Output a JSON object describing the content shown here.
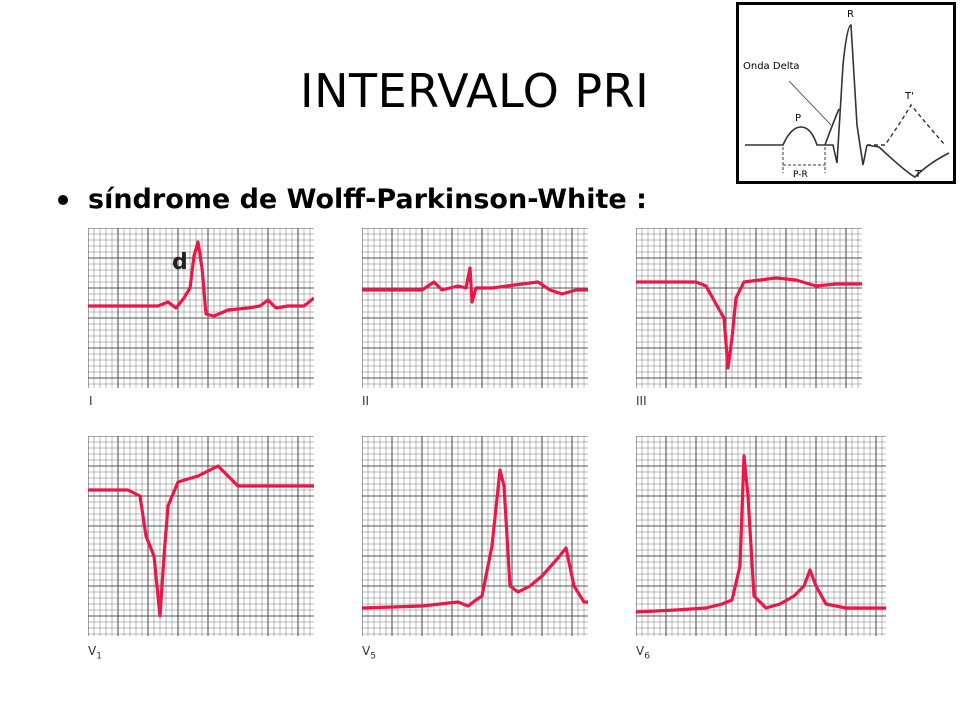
{
  "slide": {
    "title": "INTERVALO PRI",
    "bullet": "síndrome de Wolff-Parkinson-White :"
  },
  "inset_diagram": {
    "label_r": "R",
    "label_delta": "Onda Delta",
    "label_p": "P",
    "label_pr": "P-R",
    "label_t_prime": "T'",
    "label_t": "T"
  },
  "ecg": {
    "trace_color": "#e8194a",
    "grid_color": "#555555",
    "delta_marker": "d",
    "leads": [
      {
        "id": "I",
        "label": "I",
        "sub": ""
      },
      {
        "id": "II",
        "label": "II",
        "sub": ""
      },
      {
        "id": "III",
        "label": "III",
        "sub": ""
      },
      {
        "id": "V1",
        "label": "V",
        "sub": "1"
      },
      {
        "id": "V5",
        "label": "V",
        "sub": "5"
      },
      {
        "id": "V6",
        "label": "V",
        "sub": "6"
      }
    ]
  }
}
